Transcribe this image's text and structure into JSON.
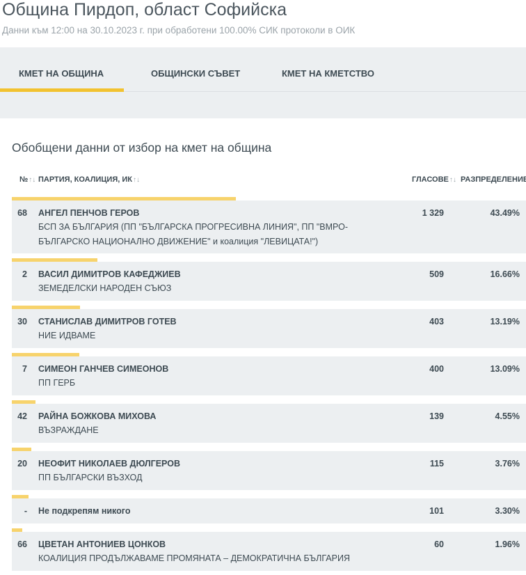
{
  "header": {
    "title": "Община Пирдоп, област Софийска",
    "subtitle": "Данни към 12:00 на 30.10.2023 г. при обработени 100.00% СИК протоколи в ОИК"
  },
  "tabs": [
    {
      "label": "КМЕТ НА ОБЩИНА",
      "active": true
    },
    {
      "label": "ОБЩИНСКИ СЪВЕТ",
      "active": false
    },
    {
      "label": "КМЕТ НА КМЕТСТВО",
      "active": false
    }
  ],
  "section_title": "Обобщени данни от избор на кмет на община",
  "table": {
    "columns": {
      "number": "№",
      "party": "ПАРТИЯ, КОАЛИЦИЯ, ИК",
      "votes": "ГЛАСОВЕ",
      "distribution": "РАЗПРЕДЕЛЕНИЕ"
    },
    "sort_icon": "↑↓",
    "rows": [
      {
        "number": "68",
        "candidate": "АНГЕЛ ПЕНЧОВ ГЕРОВ",
        "party": "БСП ЗА БЪЛГАРИЯ (ПП \"БЪЛГАРСКА ПРОГРЕСИВНА ЛИНИЯ\", ПП \"ВМРО-БЪЛГАРСКО НАЦИОНАЛНО ДВИЖЕНИЕ\" и коалиция \"ЛЕВИЦАТА!\")",
        "votes": "1 329",
        "share": "43.49%",
        "share_value": 43.49
      },
      {
        "number": "2",
        "candidate": "ВАСИЛ ДИМИТРОВ КАФЕДЖИЕВ",
        "party": "ЗЕМЕДЕЛСКИ НАРОДЕН СЪЮЗ",
        "votes": "509",
        "share": "16.66%",
        "share_value": 16.66
      },
      {
        "number": "30",
        "candidate": "СТАНИСЛАВ ДИМИТРОВ ГОТЕВ",
        "party": "НИЕ ИДВАМЕ",
        "votes": "403",
        "share": "13.19%",
        "share_value": 13.19
      },
      {
        "number": "7",
        "candidate": "СИМЕОН ГАНЧЕВ СИМЕОНОВ",
        "party": "ПП ГЕРБ",
        "votes": "400",
        "share": "13.09%",
        "share_value": 13.09
      },
      {
        "number": "42",
        "candidate": "РАЙНА БОЖКОВА МИХОВА",
        "party": "ВЪЗРАЖДАНЕ",
        "votes": "139",
        "share": "4.55%",
        "share_value": 4.55
      },
      {
        "number": "20",
        "candidate": "НЕОФИТ НИКОЛАЕВ ДЮЛГЕРОВ",
        "party": "ПП БЪЛГАРСКИ ВЪЗХОД",
        "votes": "115",
        "share": "3.76%",
        "share_value": 3.76
      },
      {
        "number": "-",
        "candidate": "Не подкрепям никого",
        "party": "",
        "votes": "101",
        "share": "3.30%",
        "share_value": 3.3
      },
      {
        "number": "66",
        "candidate": "ЦВЕТАН АНТОНИЕВ ЦОНКОВ",
        "party": "КОАЛИЦИЯ ПРОДЪЛЖАВАМЕ ПРОМЯНАТА – ДЕМОКРАТИЧНА БЪЛГАРИЯ",
        "votes": "60",
        "share": "1.96%",
        "share_value": 1.96
      }
    ]
  },
  "colors": {
    "accent": "#f2c230",
    "bar": "#f7d36c",
    "row_background": "#eceff1"
  }
}
